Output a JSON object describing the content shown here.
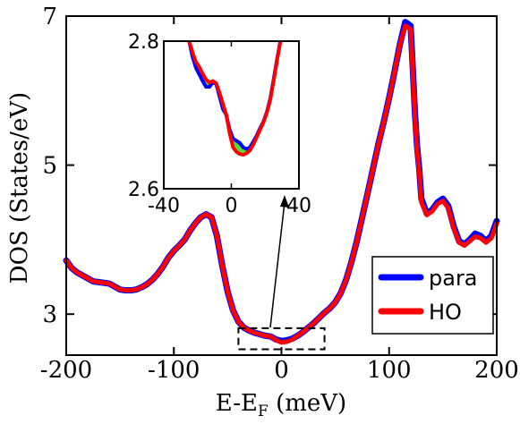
{
  "chart_data": [
    {
      "panel": "main",
      "type": "line",
      "title": "",
      "xlabel_main": "E-E",
      "xlabel_sub": "F",
      "xlabel_unit": " (meV)",
      "ylabel": "DOS (States/eV)",
      "xlim": [
        -200,
        200
      ],
      "ylim": [
        2.45,
        7
      ],
      "xticks": [
        -200,
        -100,
        0,
        100,
        200
      ],
      "xtick_labels": [
        "-200",
        "-100",
        "0",
        "100",
        "200"
      ],
      "yticks": [
        3,
        5,
        7
      ],
      "ytick_labels": [
        "3",
        "5",
        "7"
      ],
      "grid": false,
      "legend_position": "bottom-right",
      "series": [
        {
          "name": "para",
          "color": "#0000ff",
          "x": [
            -200,
            -195,
            -190,
            -185,
            -180,
            -175,
            -170,
            -165,
            -160,
            -155,
            -150,
            -145,
            -140,
            -135,
            -130,
            -125,
            -120,
            -115,
            -110,
            -105,
            -100,
            -95,
            -90,
            -85,
            -80,
            -75,
            -70,
            -65,
            -60,
            -55,
            -50,
            -45,
            -40,
            -35,
            -30,
            -25,
            -20,
            -15,
            -10,
            -5,
            0,
            5,
            10,
            15,
            20,
            25,
            30,
            35,
            40,
            45,
            50,
            55,
            60,
            65,
            70,
            75,
            80,
            85,
            90,
            95,
            100,
            105,
            110,
            115,
            120,
            122,
            124,
            126,
            128,
            130,
            135,
            140,
            145,
            150,
            155,
            160,
            165,
            170,
            175,
            180,
            185,
            190,
            195,
            200
          ],
          "y": [
            3.72,
            3.62,
            3.56,
            3.52,
            3.48,
            3.44,
            3.43,
            3.42,
            3.41,
            3.37,
            3.33,
            3.32,
            3.32,
            3.33,
            3.36,
            3.4,
            3.46,
            3.54,
            3.64,
            3.76,
            3.85,
            3.92,
            4.0,
            4.12,
            4.22,
            4.3,
            4.34,
            4.3,
            4.05,
            3.65,
            3.3,
            3.05,
            2.9,
            2.82,
            2.78,
            2.75,
            2.73,
            2.71,
            2.7,
            2.66,
            2.64,
            2.65,
            2.67,
            2.71,
            2.76,
            2.82,
            2.88,
            2.95,
            3.02,
            3.08,
            3.16,
            3.28,
            3.46,
            3.7,
            3.98,
            4.3,
            4.62,
            4.95,
            5.28,
            5.58,
            5.9,
            6.25,
            6.62,
            6.92,
            6.87,
            6.3,
            5.7,
            5.25,
            4.95,
            4.55,
            4.35,
            4.4,
            4.5,
            4.55,
            4.45,
            4.18,
            3.98,
            3.94,
            4.0,
            4.08,
            4.05,
            3.98,
            4.05,
            4.25
          ]
        },
        {
          "name": "HO",
          "color": "#ff0000",
          "x": [
            -200,
            -195,
            -190,
            -185,
            -180,
            -175,
            -170,
            -165,
            -160,
            -155,
            -150,
            -145,
            -140,
            -135,
            -130,
            -125,
            -120,
            -115,
            -110,
            -105,
            -100,
            -95,
            -90,
            -85,
            -80,
            -75,
            -70,
            -65,
            -60,
            -55,
            -50,
            -45,
            -40,
            -35,
            -30,
            -25,
            -20,
            -15,
            -10,
            -5,
            0,
            5,
            10,
            15,
            20,
            25,
            30,
            35,
            40,
            45,
            50,
            55,
            60,
            65,
            70,
            75,
            80,
            85,
            90,
            95,
            100,
            105,
            110,
            115,
            120,
            122,
            124,
            126,
            128,
            130,
            135,
            140,
            145,
            150,
            155,
            160,
            165,
            170,
            175,
            180,
            185,
            190,
            195,
            200
          ],
          "y": [
            3.72,
            3.62,
            3.56,
            3.52,
            3.48,
            3.44,
            3.43,
            3.42,
            3.41,
            3.37,
            3.33,
            3.32,
            3.32,
            3.33,
            3.36,
            3.4,
            3.46,
            3.54,
            3.64,
            3.76,
            3.85,
            3.92,
            4.0,
            4.12,
            4.22,
            4.3,
            4.34,
            4.3,
            4.05,
            3.65,
            3.3,
            3.05,
            2.9,
            2.82,
            2.78,
            2.75,
            2.73,
            2.71,
            2.7,
            2.65,
            2.62,
            2.63,
            2.66,
            2.71,
            2.76,
            2.82,
            2.88,
            2.95,
            3.02,
            3.08,
            3.16,
            3.28,
            3.46,
            3.7,
            3.98,
            4.3,
            4.62,
            4.95,
            5.28,
            5.58,
            5.9,
            6.25,
            6.62,
            6.87,
            6.82,
            6.25,
            5.65,
            5.2,
            4.9,
            4.5,
            4.33,
            4.38,
            4.48,
            4.52,
            4.42,
            4.15,
            3.96,
            3.92,
            3.98,
            4.04,
            4.02,
            3.96,
            4.02,
            4.22
          ]
        }
      ],
      "annotation": {
        "type": "dashed-box",
        "x_range": [
          -40,
          40
        ],
        "y_range": [
          2.6,
          2.8
        ]
      }
    },
    {
      "panel": "inset",
      "type": "line",
      "title": "",
      "xlim": [
        -40,
        40
      ],
      "ylim": [
        2.6,
        2.8
      ],
      "xticks": [
        -40,
        0,
        40
      ],
      "xtick_labels": [
        "-40",
        "0",
        "40"
      ],
      "yticks": [
        2.6,
        2.8
      ],
      "ytick_labels": [
        "2.6",
        "2.8"
      ],
      "fill_between_color": "#55dd33",
      "series": [
        {
          "name": "para",
          "color": "#0000ff",
          "x": [
            -25,
            -23,
            -21,
            -19,
            -17,
            -15,
            -13,
            -11,
            -9,
            -7,
            -5,
            -3,
            -1,
            1,
            3,
            5,
            7,
            9,
            11,
            13,
            15,
            17,
            19,
            21,
            23,
            25,
            27,
            29
          ],
          "y": [
            2.8,
            2.779,
            2.764,
            2.755,
            2.746,
            2.738,
            2.738,
            2.744,
            2.742,
            2.725,
            2.708,
            2.7,
            2.68,
            2.668,
            2.665,
            2.662,
            2.656,
            2.654,
            2.656,
            2.664,
            2.672,
            2.682,
            2.691,
            2.704,
            2.722,
            2.748,
            2.775,
            2.8
          ]
        },
        {
          "name": "HO",
          "color": "#ff0000",
          "x": [
            -25,
            -23,
            -21,
            -19,
            -17,
            -15,
            -13,
            -11,
            -9,
            -7,
            -5,
            -3,
            -1,
            1,
            3,
            5,
            7,
            9,
            11,
            13,
            15,
            17,
            19,
            21,
            23,
            25,
            27,
            29
          ],
          "y": [
            2.8,
            2.785,
            2.772,
            2.765,
            2.756,
            2.748,
            2.744,
            2.746,
            2.743,
            2.73,
            2.715,
            2.7,
            2.675,
            2.656,
            2.65,
            2.647,
            2.646,
            2.648,
            2.652,
            2.66,
            2.67,
            2.68,
            2.69,
            2.703,
            2.72,
            2.746,
            2.773,
            2.8
          ]
        }
      ]
    }
  ],
  "legend": {
    "items": [
      {
        "label": "para",
        "color": "#0000ff"
      },
      {
        "label": "HO",
        "color": "#ff0000"
      }
    ]
  }
}
